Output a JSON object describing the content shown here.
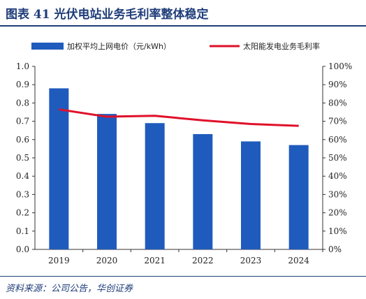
{
  "figure": {
    "title": "图表 41   光伏电站业务毛利率整体稳定",
    "source": "资料来源：公司公告，华创证券"
  },
  "colors": {
    "bar": "#1f5bbd",
    "line": "#e0102a",
    "rule": "#1f3d7a"
  },
  "chart_data": {
    "type": "bar",
    "categories": [
      "2019",
      "2020",
      "2021",
      "2022",
      "2023",
      "2024"
    ],
    "series": [
      {
        "name": "加权平均上网电价（元/kWh）",
        "type": "bar",
        "axis": "left",
        "values": [
          0.88,
          0.74,
          0.69,
          0.63,
          0.59,
          0.57
        ]
      },
      {
        "name": "太阳能发电业务毛利率",
        "type": "line",
        "axis": "right",
        "values": [
          76.5,
          72.5,
          73.0,
          70.5,
          68.5,
          67.5
        ]
      }
    ],
    "left_axis": {
      "ylim": [
        0,
        1.0
      ],
      "ticks": [
        "0.0",
        "0.1",
        "0.2",
        "0.3",
        "0.4",
        "0.5",
        "0.6",
        "0.7",
        "0.8",
        "0.9",
        "1.0"
      ]
    },
    "right_axis": {
      "ylim": [
        0,
        100
      ],
      "ticks": [
        "0%",
        "10%",
        "20%",
        "30%",
        "40%",
        "50%",
        "60%",
        "70%",
        "80%",
        "90%",
        "100%"
      ]
    },
    "grid": false,
    "legend": "top"
  }
}
